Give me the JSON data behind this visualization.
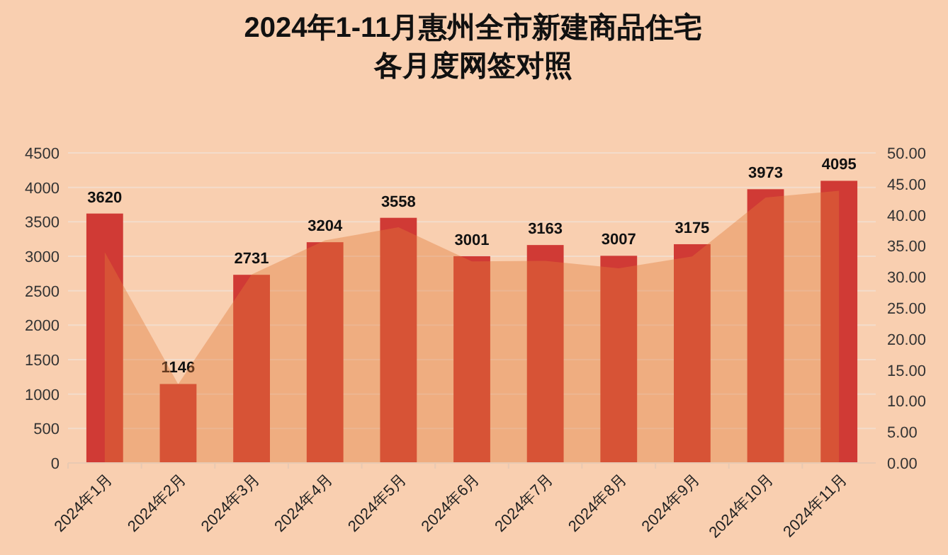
{
  "chart_data": {
    "type": "bar",
    "title": "2024年1-11月惠州全市新建商品住宅",
    "subtitle": "各月度网签对照",
    "categories": [
      "2024年1月",
      "2024年2月",
      "2024年3月",
      "2024年4月",
      "2024年5月",
      "2024年6月",
      "2024年7月",
      "2024年8月",
      "2024年9月",
      "2024年10月",
      "2024年11月"
    ],
    "series": [
      {
        "type": "area",
        "axis": "y2",
        "color": "#e07a3a",
        "values": [
          34.0,
          12.7,
          30.4,
          35.9,
          38.0,
          32.5,
          32.6,
          31.4,
          33.3,
          42.8,
          43.9
        ]
      },
      {
        "color": "#d03a35",
        "values": [
          3620,
          1146,
          2731,
          3204,
          3558,
          3001,
          3163,
          3007,
          3175,
          3973,
          4095
        ],
        "value_labels": [
          "3620",
          "1146",
          "2731",
          "3204",
          "3558",
          "3001",
          "3163",
          "3007",
          "3175",
          "3973",
          "4095"
        ]
      }
    ],
    "grid": "y",
    "ylim": [
      0,
      4500
    ],
    "yticks": [
      0,
      500,
      1000,
      1500,
      2000,
      2500,
      3000,
      3500,
      4000,
      4500
    ],
    "y2lim": [
      0,
      50
    ],
    "y2ticks": [
      {
        "value": 0,
        "label": "0.00"
      },
      {
        "value": 5,
        "label": "5.00"
      },
      {
        "value": 10,
        "label": "10.00"
      },
      {
        "value": 15,
        "label": "15.00"
      },
      {
        "value": 20,
        "label": "20.00"
      },
      {
        "value": 25,
        "label": "25.00"
      },
      {
        "value": 30,
        "label": "30.00"
      },
      {
        "value": 35,
        "label": "35.00"
      },
      {
        "value": 40,
        "label": "40.00"
      },
      {
        "value": 45,
        "label": "45.00"
      },
      {
        "value": 50,
        "label": "50.00"
      }
    ]
  }
}
